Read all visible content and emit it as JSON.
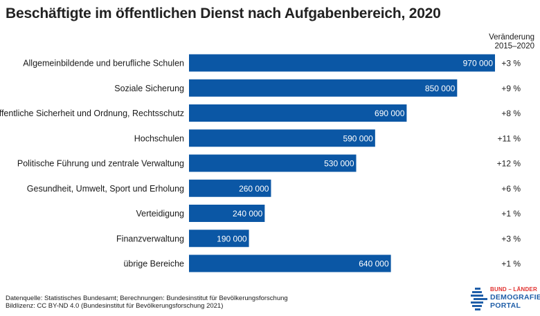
{
  "title": "Beschäftigte im öffentlichen Dienst nach Aufgabenbereich, 2020",
  "change_header": {
    "line1": "Veränderung",
    "line2": "2015–2020"
  },
  "chart_data": {
    "type": "bar",
    "orientation": "horizontal",
    "categories": [
      "Allgemeinbildende und berufliche Schulen",
      "Soziale Sicherung",
      "Öffentliche Sicherheit und Ordnung, Rechtsschutz",
      "Hochschulen",
      "Politische Führung und zentrale Verwaltung",
      "Gesundheit, Umwelt, Sport und Erholung",
      "Verteidigung",
      "Finanzverwaltung",
      "übrige Bereiche"
    ],
    "values": [
      970000,
      850000,
      690000,
      590000,
      530000,
      260000,
      240000,
      190000,
      640000
    ],
    "value_labels": [
      "970 000",
      "850 000",
      "690 000",
      "590 000",
      "530 000",
      "260 000",
      "240 000",
      "190 000",
      "640 000"
    ],
    "change_labels": [
      "+3 %",
      "+9 %",
      "+8 %",
      "+11 %",
      "+12 %",
      "+6 %",
      "+1 %",
      "+3 %",
      "+1 %"
    ],
    "xlim": [
      0,
      970000
    ],
    "grid": false,
    "bar_color": "#0b57a5",
    "label_color": "#ffffff"
  },
  "footer": {
    "source": "Datenquelle: Statistisches Bundesamt; Berechnungen: Bundesinstitut für Bevölkerungsforschung",
    "license": "Bildlizenz: CC BY-ND 4.0 (Bundesinstitut für Bevölkerungsforschung 2021)"
  },
  "logo": {
    "top": "BUND – LÄNDER",
    "line1": "DEMOGRAFIE",
    "line2": "PORTAL",
    "colors": {
      "red": "#e0302e",
      "blue": "#1f5ea8"
    },
    "icon": "demografie-portal-logo-icon"
  }
}
